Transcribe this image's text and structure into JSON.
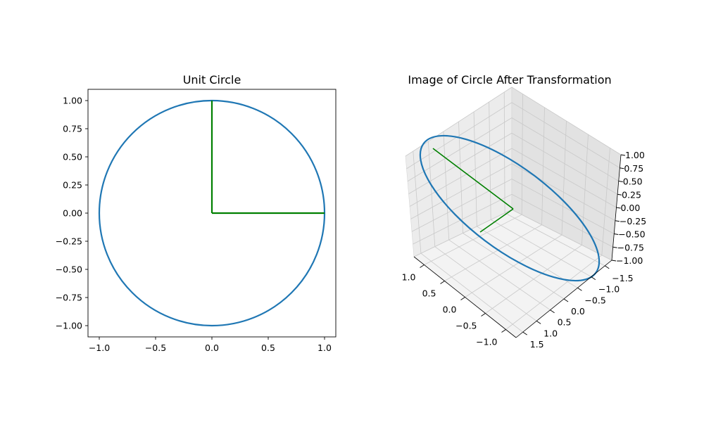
{
  "chart_data": [
    {
      "type": "line",
      "title": "Unit Circle",
      "xlabel": "",
      "ylabel": "",
      "xlim": [
        -1.1,
        1.1
      ],
      "ylim": [
        -1.1,
        1.1
      ],
      "xticks": [
        -1.0,
        -0.5,
        0.0,
        0.5,
        1.0
      ],
      "xtick_labels": [
        "−1.0",
        "−0.5",
        "0.0",
        "0.5",
        "1.0"
      ],
      "yticks": [
        -1.0,
        -0.75,
        -0.5,
        -0.25,
        0.0,
        0.25,
        0.5,
        0.75,
        1.0
      ],
      "ytick_labels": [
        "−1.00",
        "−0.75",
        "−0.50",
        "−0.25",
        "0.00",
        "0.25",
        "0.50",
        "0.75",
        "1.00"
      ],
      "grid": false,
      "series": [
        {
          "kind": "circle",
          "center": [
            0,
            0
          ],
          "radius": 1,
          "color": "#1f77b4"
        },
        {
          "kind": "segment",
          "points": [
            [
              0,
              0
            ],
            [
              1,
              0
            ]
          ],
          "color": "#008000"
        },
        {
          "kind": "segment",
          "points": [
            [
              0,
              0
            ],
            [
              0,
              1
            ]
          ],
          "color": "#008000"
        }
      ]
    },
    {
      "type": "line3d",
      "title": "Image of Circle After Transformation",
      "xlim": [
        -1.0,
        1.0
      ],
      "ylim": [
        -1.5,
        1.5
      ],
      "zlim": [
        -1.0,
        1.0
      ],
      "xtick_labels": [
        "1.0",
        "0.5",
        "0.0",
        "−0.5",
        "−1.0"
      ],
      "ytick_labels": [
        "1.5",
        "1.0",
        "0.5",
        "0.0",
        "−0.5",
        "−1.0",
        "−1.5"
      ],
      "ztick_labels": [
        "−1.00",
        "−0.75",
        "−0.50",
        "−0.25",
        "0.00",
        "0.25",
        "0.50",
        "0.75",
        "1.00"
      ],
      "grid": true,
      "series": [
        {
          "kind": "ellipse",
          "description": "transformed unit circle",
          "color": "#1f77b4"
        },
        {
          "kind": "segment",
          "description": "image of e1",
          "color": "#008000"
        },
        {
          "kind": "segment",
          "description": "image of e2",
          "color": "#008000"
        }
      ]
    }
  ],
  "colors": {
    "circle": "#1f77b4",
    "vectors": "#008000",
    "axes": "#000000"
  }
}
